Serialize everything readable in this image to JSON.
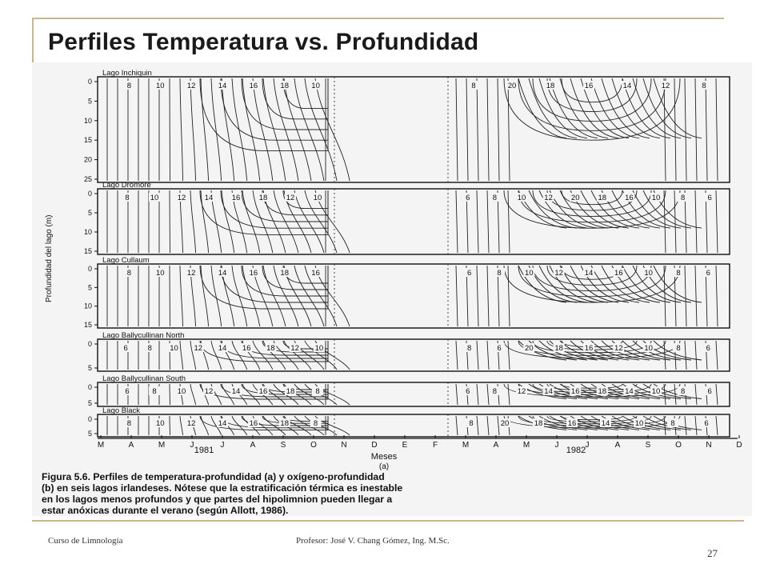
{
  "slide": {
    "title": "Perfiles Temperatura vs. Profundidad",
    "footer_course": "Curso de Limnología",
    "footer_professor": "Profesor: José V. Chang Gómez, Ing. M.Sc.",
    "page_number": "27"
  },
  "figure": {
    "y_axis_label": "Profundidad del lago (m)",
    "x_axis_label": "Meses",
    "panel_letter": "(a)",
    "year_1981": "1981",
    "year_1982": "1982",
    "months": [
      "M",
      "A",
      "M",
      "J",
      "J",
      "A",
      "S",
      "O",
      "N",
      "D",
      "E",
      "F",
      "M",
      "A",
      "M",
      "J",
      "J",
      "A",
      "S",
      "O",
      "N",
      "D"
    ],
    "lakes": [
      {
        "name": "Lago Inchiquin",
        "depth_ticks": [
          "0",
          "5",
          "10",
          "15",
          "20",
          "25"
        ],
        "labels_left": [
          "8",
          "10",
          "12",
          "14",
          "16",
          "18",
          "10"
        ],
        "labels_right": [
          "8",
          "20",
          "18",
          "16",
          "14",
          "12",
          "8"
        ]
      },
      {
        "name": "Lago Dromore",
        "depth_ticks": [
          "0",
          "5",
          "10",
          "15"
        ],
        "labels_left": [
          "8",
          "10",
          "12",
          "14",
          "16",
          "18",
          "12",
          "10"
        ],
        "labels_right": [
          "6",
          "8",
          "10",
          "12",
          "20",
          "18",
          "16",
          "10",
          "8",
          "6"
        ]
      },
      {
        "name": "Lago Cullaum",
        "depth_ticks": [
          "0",
          "5",
          "10",
          "15"
        ],
        "labels_left": [
          "8",
          "10",
          "12",
          "14",
          "16",
          "18",
          "16"
        ],
        "labels_right": [
          "6",
          "8",
          "10",
          "12",
          "14",
          "16",
          "10",
          "8",
          "6"
        ]
      },
      {
        "name": "Lago Ballycullinan North",
        "depth_ticks": [
          "0",
          "5"
        ],
        "labels_left": [
          "6",
          "8",
          "10",
          "12",
          "14",
          "16",
          "18",
          "12",
          "10"
        ],
        "labels_right": [
          "8",
          "6",
          "20",
          "18",
          "16",
          "12",
          "10",
          "8",
          "6"
        ]
      },
      {
        "name": "Lago Ballycullinan South",
        "depth_ticks": [
          "0",
          "5"
        ],
        "labels_left": [
          "6",
          "8",
          "10",
          "12",
          "14",
          "16",
          "18",
          "8"
        ],
        "labels_right": [
          "6",
          "8",
          "12",
          "14",
          "16",
          "18",
          "14",
          "10",
          "8",
          "6"
        ]
      },
      {
        "name": "Lago Black",
        "depth_ticks": [
          "0",
          "5"
        ],
        "labels_left": [
          "8",
          "10",
          "12",
          "14",
          "16",
          "18",
          "8"
        ],
        "labels_right": [
          "8",
          "20",
          "18",
          "16",
          "14",
          "10",
          "8",
          "6"
        ]
      }
    ],
    "caption_lines": [
      "Figura 5.6.   Perfiles de temperatura-profundidad (a) y oxígeno-profundidad",
      "(b) en seis lagos irlandeses. Nótese que la estratificación térmica es inestable",
      "en los lagos menos profundos y que partes del hipolimnion pueden llegar a",
      "estar anóxicas durante el verano (según Allott, 1986)."
    ]
  }
}
